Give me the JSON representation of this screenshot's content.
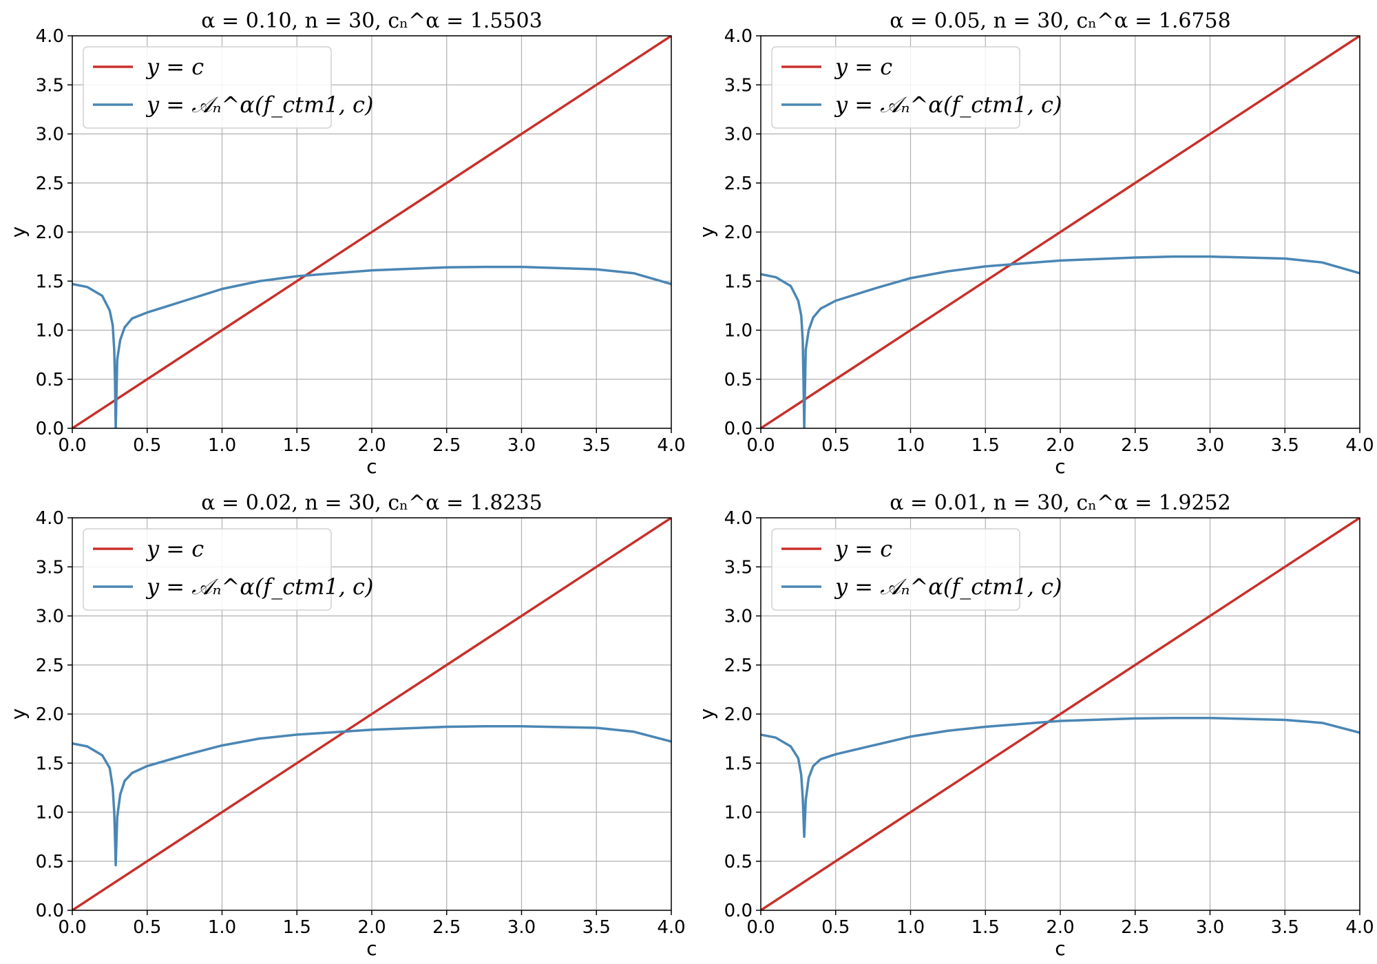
{
  "chart_data": [
    {
      "type": "line",
      "title": "α = 0.10, n = 30, cₙ^α = 1.5503",
      "xlabel": "c",
      "ylabel": "y",
      "xlim": [
        0.0,
        4.0
      ],
      "ylim": [
        0.0,
        4.0
      ],
      "xticks": [
        "0.0",
        "0.5",
        "1.0",
        "1.5",
        "2.0",
        "2.5",
        "3.0",
        "3.5",
        "4.0"
      ],
      "yticks": [
        "0.0",
        "0.5",
        "1.0",
        "1.5",
        "2.0",
        "2.5",
        "3.0",
        "3.5",
        "4.0"
      ],
      "grid": true,
      "legend_position": "top-left",
      "series": [
        {
          "name": "y = c",
          "color": "#c8302a",
          "x": [
            0.0,
            4.0
          ],
          "y": [
            0.0,
            4.0
          ]
        },
        {
          "name": "y = 𝒜ₙ^α(f_ctm1, c)",
          "color": "#4a86b4",
          "x": [
            0.0,
            0.1,
            0.2,
            0.25,
            0.27,
            0.28,
            0.285,
            0.29,
            0.3,
            0.32,
            0.35,
            0.4,
            0.5,
            0.75,
            1.0,
            1.25,
            1.5,
            2.0,
            2.5,
            2.75,
            3.0,
            3.5,
            3.75,
            4.0
          ],
          "y": [
            1.47,
            1.44,
            1.35,
            1.2,
            1.05,
            0.8,
            0.5,
            0.0,
            0.7,
            0.9,
            1.03,
            1.12,
            1.18,
            1.3,
            1.42,
            1.5,
            1.55,
            1.61,
            1.64,
            1.645,
            1.645,
            1.62,
            1.58,
            1.47
          ]
        }
      ]
    },
    {
      "type": "line",
      "title": "α = 0.05, n = 30, cₙ^α = 1.6758",
      "xlabel": "c",
      "ylabel": "y",
      "xlim": [
        0.0,
        4.0
      ],
      "ylim": [
        0.0,
        4.0
      ],
      "xticks": [
        "0.0",
        "0.5",
        "1.0",
        "1.5",
        "2.0",
        "2.5",
        "3.0",
        "3.5",
        "4.0"
      ],
      "yticks": [
        "0.0",
        "0.5",
        "1.0",
        "1.5",
        "2.0",
        "2.5",
        "3.0",
        "3.5",
        "4.0"
      ],
      "grid": true,
      "legend_position": "top-left",
      "series": [
        {
          "name": "y = c",
          "color": "#c8302a",
          "x": [
            0.0,
            4.0
          ],
          "y": [
            0.0,
            4.0
          ]
        },
        {
          "name": "y = 𝒜ₙ^α(f_ctm1, c)",
          "color": "#4a86b4",
          "x": [
            0.0,
            0.1,
            0.2,
            0.25,
            0.27,
            0.28,
            0.285,
            0.29,
            0.3,
            0.32,
            0.35,
            0.4,
            0.5,
            0.75,
            1.0,
            1.25,
            1.5,
            2.0,
            2.5,
            2.75,
            3.0,
            3.5,
            3.75,
            4.0
          ],
          "y": [
            1.57,
            1.54,
            1.45,
            1.3,
            1.15,
            0.9,
            0.5,
            0.0,
            0.8,
            1.0,
            1.13,
            1.22,
            1.3,
            1.42,
            1.53,
            1.6,
            1.65,
            1.71,
            1.74,
            1.75,
            1.75,
            1.73,
            1.69,
            1.58
          ]
        }
      ]
    },
    {
      "type": "line",
      "title": "α = 0.02, n = 30, cₙ^α = 1.8235",
      "xlabel": "c",
      "ylabel": "y",
      "xlim": [
        0.0,
        4.0
      ],
      "ylim": [
        0.0,
        4.0
      ],
      "xticks": [
        "0.0",
        "0.5",
        "1.0",
        "1.5",
        "2.0",
        "2.5",
        "3.0",
        "3.5",
        "4.0"
      ],
      "yticks": [
        "0.0",
        "0.5",
        "1.0",
        "1.5",
        "2.0",
        "2.5",
        "3.0",
        "3.5",
        "4.0"
      ],
      "grid": true,
      "legend_position": "top-left",
      "series": [
        {
          "name": "y = c",
          "color": "#c8302a",
          "x": [
            0.0,
            4.0
          ],
          "y": [
            0.0,
            4.0
          ]
        },
        {
          "name": "y = 𝒜ₙ^α(f_ctm1, c)",
          "color": "#4a86b4",
          "x": [
            0.0,
            0.1,
            0.2,
            0.25,
            0.27,
            0.28,
            0.285,
            0.29,
            0.3,
            0.32,
            0.35,
            0.4,
            0.5,
            0.75,
            1.0,
            1.25,
            1.5,
            2.0,
            2.5,
            2.75,
            3.0,
            3.5,
            3.75,
            4.0
          ],
          "y": [
            1.7,
            1.67,
            1.58,
            1.45,
            1.25,
            1.0,
            0.75,
            0.46,
            0.95,
            1.18,
            1.32,
            1.4,
            1.47,
            1.58,
            1.68,
            1.75,
            1.79,
            1.84,
            1.87,
            1.875,
            1.875,
            1.86,
            1.82,
            1.72
          ]
        }
      ]
    },
    {
      "type": "line",
      "title": "α = 0.01, n = 30, cₙ^α = 1.9252",
      "xlabel": "c",
      "ylabel": "y",
      "xlim": [
        0.0,
        4.0
      ],
      "ylim": [
        0.0,
        4.0
      ],
      "xticks": [
        "0.0",
        "0.5",
        "1.0",
        "1.5",
        "2.0",
        "2.5",
        "3.0",
        "3.5",
        "4.0"
      ],
      "yticks": [
        "0.0",
        "0.5",
        "1.0",
        "1.5",
        "2.0",
        "2.5",
        "3.0",
        "3.5",
        "4.0"
      ],
      "grid": true,
      "legend_position": "top-left",
      "series": [
        {
          "name": "y = c",
          "color": "#c8302a",
          "x": [
            0.0,
            4.0
          ],
          "y": [
            0.0,
            4.0
          ]
        },
        {
          "name": "y = 𝒜ₙ^α(f_ctm1, c)",
          "color": "#4a86b4",
          "x": [
            0.0,
            0.1,
            0.2,
            0.25,
            0.27,
            0.28,
            0.285,
            0.29,
            0.3,
            0.32,
            0.35,
            0.4,
            0.5,
            0.75,
            1.0,
            1.25,
            1.5,
            2.0,
            2.5,
            2.75,
            3.0,
            3.5,
            3.75,
            4.0
          ],
          "y": [
            1.79,
            1.76,
            1.67,
            1.55,
            1.38,
            1.15,
            0.95,
            0.75,
            1.12,
            1.35,
            1.47,
            1.54,
            1.59,
            1.68,
            1.77,
            1.83,
            1.87,
            1.93,
            1.955,
            1.96,
            1.96,
            1.94,
            1.91,
            1.81
          ]
        }
      ]
    }
  ]
}
